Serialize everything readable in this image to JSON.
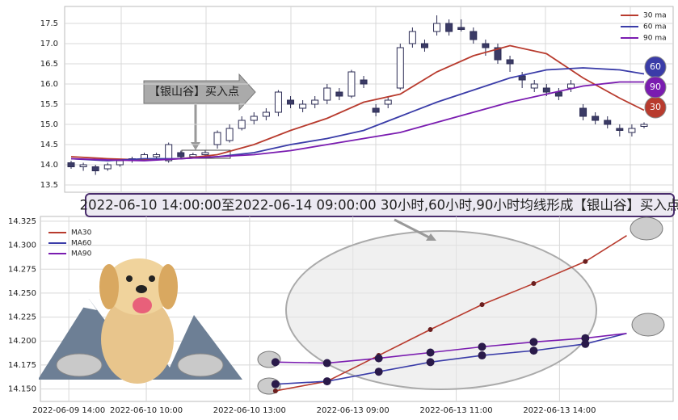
{
  "chart_data": [
    {
      "type": "candlestick",
      "open": [
        14.05,
        13.95,
        13.95,
        13.9,
        14.0,
        14.1,
        14.15,
        14.2,
        14.1,
        14.3,
        14.2,
        14.25,
        14.5,
        14.6,
        14.9,
        15.1,
        15.2,
        15.3,
        15.6,
        15.4,
        15.5,
        15.6,
        15.8,
        15.7,
        16.1,
        15.4,
        15.5,
        15.9,
        17.0,
        17.0,
        17.3,
        17.5,
        17.4,
        17.3,
        17.0,
        16.9,
        16.6,
        16.2,
        15.9,
        15.9,
        15.8,
        15.9,
        15.4,
        15.2,
        15.1,
        14.9,
        14.8,
        14.95
      ],
      "close": [
        13.95,
        14.0,
        13.85,
        14.0,
        14.1,
        14.15,
        14.25,
        14.25,
        14.5,
        14.2,
        14.25,
        14.3,
        14.8,
        14.9,
        15.1,
        15.2,
        15.3,
        15.8,
        15.5,
        15.5,
        15.6,
        15.9,
        15.7,
        16.3,
        16.0,
        15.3,
        15.6,
        16.9,
        17.3,
        16.9,
        17.5,
        17.3,
        17.35,
        17.1,
        16.9,
        16.6,
        16.5,
        16.1,
        16.0,
        15.8,
        15.7,
        16.0,
        15.2,
        15.1,
        15.0,
        14.85,
        14.9,
        15.0
      ],
      "high": [
        14.1,
        14.05,
        14.0,
        14.05,
        14.15,
        14.2,
        14.3,
        14.3,
        14.55,
        14.35,
        14.3,
        14.35,
        14.85,
        15.0,
        15.2,
        15.3,
        15.4,
        15.85,
        15.7,
        15.6,
        15.7,
        16.0,
        15.9,
        16.35,
        16.2,
        15.5,
        15.7,
        17.0,
        17.4,
        17.1,
        17.7,
        17.6,
        17.6,
        17.4,
        17.1,
        17.0,
        16.7,
        16.3,
        16.1,
        16.0,
        15.9,
        16.1,
        15.5,
        15.3,
        15.2,
        15.0,
        15.0,
        15.05
      ],
      "low": [
        13.9,
        13.85,
        13.75,
        13.85,
        13.95,
        14.05,
        14.1,
        14.15,
        14.05,
        14.15,
        14.15,
        14.2,
        14.4,
        14.55,
        14.85,
        15.0,
        15.1,
        15.2,
        15.4,
        15.3,
        15.4,
        15.5,
        15.6,
        15.65,
        15.9,
        15.2,
        15.4,
        15.85,
        16.9,
        16.8,
        17.2,
        17.2,
        17.3,
        17.0,
        16.7,
        16.5,
        16.3,
        15.9,
        15.8,
        15.7,
        15.6,
        15.8,
        15.1,
        15.0,
        14.9,
        14.7,
        14.7,
        14.9
      ],
      "ma_x": [
        0,
        3,
        6,
        9,
        12,
        15,
        18,
        21,
        24,
        27,
        30,
        33,
        36,
        39,
        42,
        45,
        47
      ],
      "series": [
        {
          "name": "30 ma",
          "color": "#b83b2e",
          "end_label": "30",
          "values": [
            14.2,
            14.15,
            14.12,
            14.15,
            14.25,
            14.5,
            14.85,
            15.15,
            15.55,
            15.75,
            16.3,
            16.7,
            16.95,
            16.75,
            16.15,
            15.65,
            15.35
          ]
        },
        {
          "name": "60 ma",
          "color": "#3a3ca8",
          "end_label": "60",
          "values": [
            14.15,
            14.1,
            14.15,
            14.15,
            14.2,
            14.3,
            14.5,
            14.65,
            14.85,
            15.2,
            15.55,
            15.85,
            16.15,
            16.35,
            16.4,
            16.35,
            16.25
          ]
        },
        {
          "name": "90 ma",
          "color": "#7a1cb0",
          "end_label": "90",
          "values": [
            14.15,
            14.12,
            14.1,
            14.15,
            14.2,
            14.25,
            14.35,
            14.5,
            14.65,
            14.8,
            15.05,
            15.3,
            15.55,
            15.75,
            15.95,
            16.05,
            16.05
          ]
        }
      ],
      "ylim": [
        13.32,
        17.92
      ],
      "yticks": [
        13.5,
        {
          "value": 14.0,
          "label": "14.0"
        },
        14.5,
        {
          "value": 15.0,
          "label": "15.0"
        },
        15.5,
        {
          "value": 16.0,
          "label": "16.0"
        },
        16.5,
        {
          "value": 17.0,
          "label": "17.0"
        },
        17.5
      ],
      "annotation": "【银山谷】买入点",
      "grid": true,
      "legend": "upper right"
    },
    {
      "type": "line",
      "title": "2022-06-10 14:00:00至2022-06-14 09:00:00 30小时,60小时,90小时均线形成【银山谷】买入点",
      "x": [
        4,
        5,
        6,
        7,
        8,
        9,
        10,
        10.8
      ],
      "series": [
        {
          "name": "MA30",
          "color": "#b83b2e",
          "values": [
            14.148,
            14.158,
            14.185,
            14.212,
            14.238,
            14.26,
            14.283,
            14.31
          ]
        },
        {
          "name": "MA60",
          "color": "#3a3ca8",
          "values": [
            14.155,
            14.158,
            14.168,
            14.178,
            14.185,
            14.19,
            14.197,
            14.208
          ]
        },
        {
          "name": "MA90",
          "color": "#7a1cb0",
          "values": [
            14.178,
            14.177,
            14.182,
            14.188,
            14.194,
            14.199,
            14.203,
            14.208
          ]
        }
      ],
      "xlim": [
        -0.55,
        11.7
      ],
      "xticks": [
        {
          "value": 0,
          "label": "2022-06-09 14:00"
        },
        {
          "value": 1.5,
          "label": "2022-06-10 10:00"
        },
        {
          "value": 3.5,
          "label": "2022-06-10 13:00"
        },
        {
          "value": 5.5,
          "label": "2022-06-13 09:00"
        },
        {
          "value": 7.5,
          "label": "2022-06-13 11:00"
        },
        {
          "value": 9.5,
          "label": "2022-06-13 14:00"
        }
      ],
      "ylim": [
        14.137,
        14.33
      ],
      "yticks": [
        {
          "value": 14.15,
          "label": "14.150"
        },
        {
          "value": 14.175,
          "label": "14.175"
        },
        {
          "value": 14.2,
          "label": "14.200"
        },
        {
          "value": 14.225,
          "label": "14.225"
        },
        {
          "value": 14.25,
          "label": "14.250"
        },
        {
          "value": 14.275,
          "label": "14.275"
        },
        {
          "value": 14.3,
          "label": "14.300"
        },
        {
          "value": 14.325,
          "label": "14.325"
        }
      ],
      "grid": true,
      "legend": "upper left"
    }
  ]
}
